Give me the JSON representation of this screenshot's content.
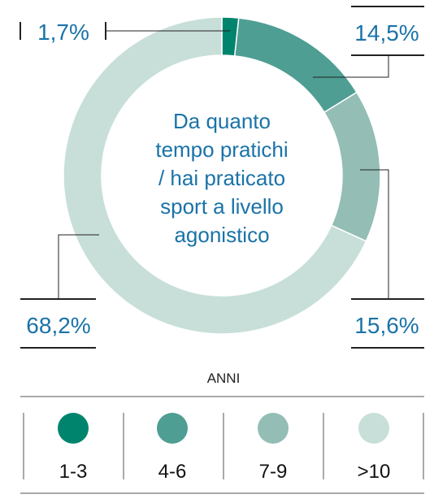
{
  "chart_data": {
    "type": "pie",
    "title": "Da quanto tempo pratichi / hai praticato sport a livello agonistico",
    "title_lines": [
      "Da quanto",
      "tempo pratichi",
      "/ hai praticato",
      "sport a livello",
      "agonistico"
    ],
    "legend_title": "ANNI",
    "legend_placement": "bottom",
    "categories": [
      "1-3",
      "4-6",
      "7-9",
      ">10"
    ],
    "values": [
      1.7,
      14.5,
      15.6,
      68.2
    ],
    "value_labels": [
      "1,7%",
      "14,5%",
      "15,6%",
      "68,2%"
    ],
    "colors": [
      "#00846d",
      "#4e9e93",
      "#93bdb5",
      "#c8dfd9"
    ],
    "text_color": "#1a73a8",
    "line_color": "#222222"
  }
}
